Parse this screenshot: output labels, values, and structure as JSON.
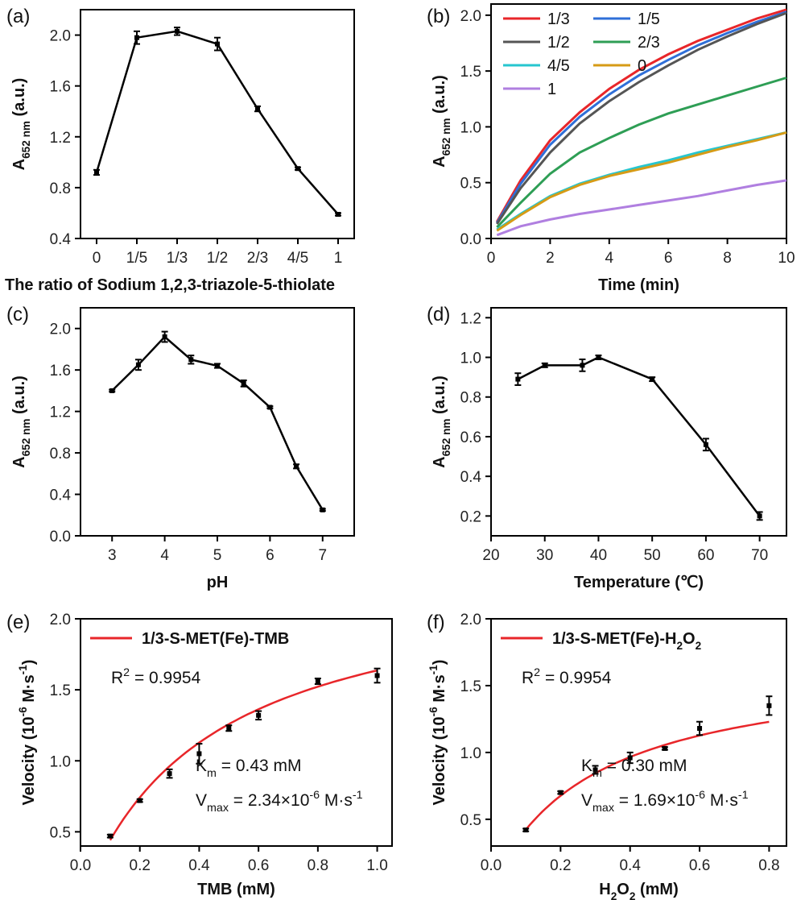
{
  "chart_data": [
    {
      "panel": "(a)",
      "type": "line",
      "categories": [
        "0",
        "1/5",
        "1/3",
        "1/2",
        "2/3",
        "4/5",
        "1"
      ],
      "values": [
        0.92,
        1.98,
        2.03,
        1.93,
        1.42,
        0.95,
        0.59
      ],
      "errors": [
        0.02,
        0.05,
        0.03,
        0.05,
        0.02,
        0.01,
        0.01
      ],
      "xlabel": "The ratio of  Sodium 1,2,3-triazole-5-thiolate",
      "ylabel_main": "A",
      "ylabel_sub": "652 nm",
      "ylabel_rest": " (a.u.)",
      "ylim": [
        0.4,
        2.2
      ],
      "yticks": [
        "0.4",
        "0.8",
        "1.2",
        "1.6",
        "2.0"
      ],
      "color": "#000000"
    },
    {
      "panel": "(b)",
      "type": "line",
      "xlabel": "Time (min)",
      "ylabel_main": "A",
      "ylabel_sub": "652 nm",
      "ylabel_rest": " (a.u.)",
      "xlim": [
        0,
        10
      ],
      "ylim": [
        0,
        2.1
      ],
      "xticks": [
        "0",
        "2",
        "4",
        "6",
        "8",
        "10"
      ],
      "yticks": [
        "0.0",
        "0.5",
        "1.0",
        "1.5",
        "2.0"
      ],
      "legend_position": "top-left",
      "x": [
        0.2,
        1,
        2,
        3,
        4,
        5,
        6,
        7,
        8,
        9,
        10
      ],
      "series": [
        {
          "name": "1/3",
          "color": "#e8262a",
          "values": [
            0.15,
            0.52,
            0.88,
            1.13,
            1.34,
            1.51,
            1.65,
            1.77,
            1.87,
            1.97,
            2.05
          ]
        },
        {
          "name": "1/5",
          "color": "#2f6fd8",
          "values": [
            0.14,
            0.49,
            0.84,
            1.09,
            1.29,
            1.46,
            1.6,
            1.73,
            1.84,
            1.94,
            2.03
          ]
        },
        {
          "name": "1/2",
          "color": "#555555",
          "values": [
            0.13,
            0.45,
            0.77,
            1.03,
            1.23,
            1.4,
            1.55,
            1.69,
            1.81,
            1.92,
            2.02
          ]
        },
        {
          "name": "2/3",
          "color": "#2e9e55",
          "values": [
            0.1,
            0.32,
            0.58,
            0.77,
            0.9,
            1.02,
            1.12,
            1.2,
            1.28,
            1.36,
            1.44
          ]
        },
        {
          "name": "4/5",
          "color": "#26c6cf",
          "values": [
            0.08,
            0.22,
            0.38,
            0.49,
            0.57,
            0.64,
            0.7,
            0.77,
            0.83,
            0.89,
            0.95
          ]
        },
        {
          "name": "0",
          "color": "#d69b16",
          "values": [
            0.07,
            0.21,
            0.37,
            0.48,
            0.56,
            0.62,
            0.68,
            0.75,
            0.82,
            0.88,
            0.95
          ]
        },
        {
          "name": "1",
          "color": "#b07fe0",
          "values": [
            0.03,
            0.11,
            0.17,
            0.22,
            0.26,
            0.3,
            0.34,
            0.38,
            0.43,
            0.48,
            0.52
          ]
        }
      ]
    },
    {
      "panel": "(c)",
      "type": "line",
      "xlabel": "pH",
      "ylabel_main": "A",
      "ylabel_sub": "652 nm",
      "ylabel_rest": " (a.u.)",
      "xlim": [
        2.4,
        7.6
      ],
      "ylim": [
        0,
        2.2
      ],
      "xticks": [
        "3",
        "4",
        "5",
        "6",
        "7"
      ],
      "yticks": [
        "0.0",
        "0.4",
        "0.8",
        "1.2",
        "1.6",
        "2.0"
      ],
      "x": [
        3,
        3.5,
        4,
        4.5,
        5,
        5.5,
        6,
        6.5,
        7
      ],
      "values": [
        1.4,
        1.65,
        1.92,
        1.7,
        1.64,
        1.47,
        1.24,
        0.67,
        0.25
      ],
      "errors": [
        0.01,
        0.05,
        0.05,
        0.04,
        0.02,
        0.03,
        0.01,
        0.02,
        0.01
      ],
      "color": "#000000"
    },
    {
      "panel": "(d)",
      "type": "line",
      "xlabel": "Temperature (℃)",
      "ylabel_main": "A",
      "ylabel_sub": "652 nm",
      "ylabel_rest": " (a.u.)",
      "xlim": [
        20,
        75
      ],
      "ylim": [
        0.1,
        1.25
      ],
      "xticks": [
        "20",
        "30",
        "40",
        "50",
        "60",
        "70"
      ],
      "yticks": [
        "0.2",
        "0.4",
        "0.6",
        "0.8",
        "1.0",
        "1.2"
      ],
      "x": [
        25,
        30,
        37,
        40,
        50,
        60,
        70
      ],
      "values": [
        0.89,
        0.96,
        0.96,
        1.0,
        0.89,
        0.56,
        0.2
      ],
      "errors": [
        0.03,
        0.01,
        0.03,
        0.01,
        0.01,
        0.03,
        0.02
      ],
      "color": "#000000"
    },
    {
      "panel": "(e)",
      "type": "scatter",
      "xlabel": "TMB (mM)",
      "ylabel_text": "Velocity (10",
      "ylabel_sup": "-6",
      "ylabel_text2": " M·s",
      "ylabel_sup2": "-1",
      "ylabel_text3": ")",
      "xlim": [
        0,
        1.05
      ],
      "ylim": [
        0.4,
        2.0
      ],
      "xticks": [
        "0.0",
        "0.2",
        "0.4",
        "0.6",
        "0.8",
        "1.0"
      ],
      "yticks": [
        "0.5",
        "1.0",
        "1.5",
        "2.0"
      ],
      "x": [
        0.1,
        0.2,
        0.3,
        0.4,
        0.5,
        0.6,
        0.8,
        1.0
      ],
      "values": [
        0.47,
        0.72,
        0.91,
        1.05,
        1.23,
        1.32,
        1.56,
        1.6
      ],
      "errors": [
        0.01,
        0.01,
        0.03,
        0.07,
        0.02,
        0.03,
        0.02,
        0.05
      ],
      "fit": {
        "vmax": 2.34,
        "km": 0.43,
        "color": "#e8262a",
        "x_range": [
          0.1,
          1.0
        ]
      },
      "legend_label": "1/3-S-MET(Fe)-TMB",
      "legend_sub": "",
      "r2_pre": "R",
      "r2_sup": "2",
      "r2_post": " = 0.9954",
      "km_pre": "K",
      "km_sub": "m",
      "km_post": " = 0.43 mM",
      "vmax_pre": "V",
      "vmax_sub": "max",
      "vmax_mid": " = 2.34×10",
      "vmax_sup": "-6",
      "vmax_post": " M·s",
      "vmax_sup2": "-1",
      "color": "#000000"
    },
    {
      "panel": "(f)",
      "type": "scatter",
      "xlabel_pre": "H",
      "xlabel_sub": "2",
      "xlabel_mid": "O",
      "xlabel_sub2": "2",
      "xlabel_post": " (mM)",
      "ylabel_text": "Velocity (10",
      "ylabel_sup": "-6",
      "ylabel_text2": " M·s",
      "ylabel_sup2": "-1",
      "ylabel_text3": ")",
      "xlim": [
        0,
        0.85
      ],
      "ylim": [
        0.3,
        2.0
      ],
      "xticks": [
        "0.0",
        "0.2",
        "0.4",
        "0.6",
        "0.8"
      ],
      "yticks": [
        "0.5",
        "1.0",
        "1.5",
        "2.0"
      ],
      "x": [
        0.1,
        0.2,
        0.3,
        0.4,
        0.5,
        0.6,
        0.8
      ],
      "values": [
        0.42,
        0.7,
        0.87,
        0.96,
        1.03,
        1.18,
        1.35
      ],
      "errors": [
        0.01,
        0.01,
        0.03,
        0.04,
        0.01,
        0.05,
        0.07
      ],
      "fit": {
        "vmax": 1.69,
        "km": 0.3,
        "color": "#e8262a",
        "x_range": [
          0.1,
          0.8
        ]
      },
      "legend_label": "1/3-S-MET(Fe)-H",
      "legend_sub": "2",
      "legend_mid": "O",
      "legend_sub2": "2",
      "r2_pre": "R",
      "r2_sup": "2",
      "r2_post": " = 0.9954",
      "km_pre": "K",
      "km_sub": "m",
      "km_post": " = 0.30 mM",
      "vmax_pre": "V",
      "vmax_sub": "max",
      "vmax_mid": " = 1.69×10",
      "vmax_sup": "-6",
      "vmax_post": " M·s",
      "vmax_sup2": "-1",
      "color": "#000000"
    }
  ]
}
